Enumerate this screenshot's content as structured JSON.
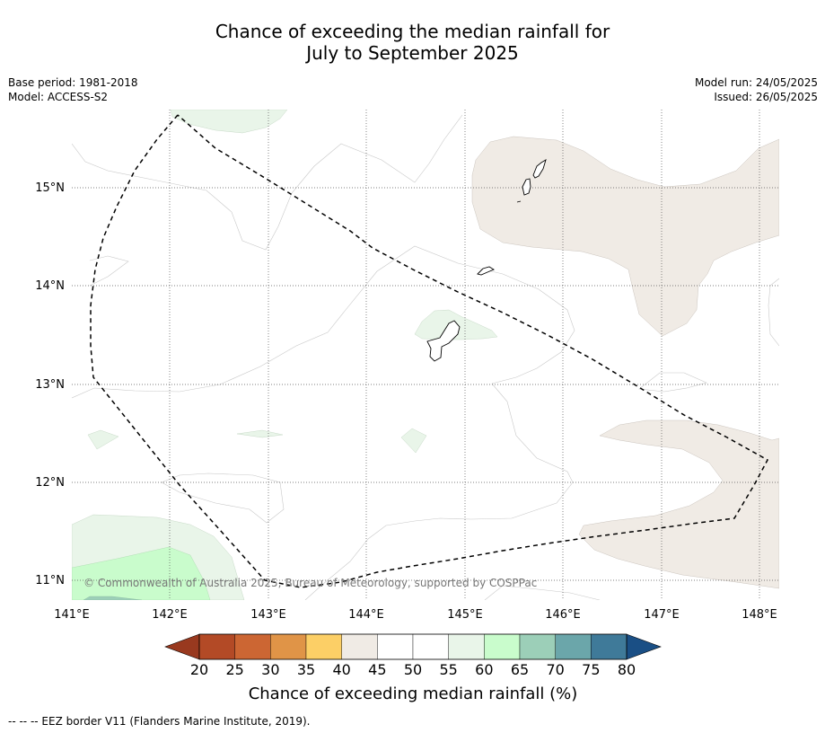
{
  "title": {
    "line1": "Chance of exceeding the median rainfall for",
    "line2": "July to September 2025"
  },
  "meta_left": {
    "base_period": "Base period: 1981-2018",
    "model": "Model: ACCESS-S2"
  },
  "meta_right": {
    "model_run": "Model run: 24/05/2025",
    "issued": "Issued: 26/05/2025"
  },
  "map": {
    "lon_range": [
      141,
      148.2
    ],
    "lat_range": [
      10.8,
      15.8
    ],
    "lat_labels": [
      "15°N",
      "14°N",
      "13°N",
      "12°N",
      "11°N"
    ],
    "lat_values": [
      15,
      14,
      13,
      12,
      11
    ],
    "lon_labels": [
      "141°E",
      "142°E",
      "143°E",
      "144°E",
      "145°E",
      "146°E",
      "147°E",
      "148°E"
    ],
    "lon_values": [
      141,
      142,
      143,
      144,
      145,
      146,
      147,
      148
    ],
    "gridlines": true,
    "copyright": "© Commonwealth of Australia 2025, Bureau of Meteorology, supported by COSPPac"
  },
  "colorbar": {
    "ticks": [
      "20",
      "25",
      "30",
      "35",
      "40",
      "45",
      "50",
      "55",
      "60",
      "65",
      "70",
      "75",
      "80"
    ],
    "colors": [
      "#b34a26",
      "#cc6633",
      "#e09447",
      "#fccf66",
      "#f0ebe5",
      "#ffffff",
      "#ffffff",
      "#e9f5e9",
      "#c9fccc",
      "#9ccfb8",
      "#6ba6aa",
      "#3f7a99"
    ],
    "low_extend_color": "#99391f",
    "high_extend_color": "#1a4f85",
    "title": "Chance of exceeding median rainfall (%)"
  },
  "footer": {
    "legend_text": "--  --  -- EEZ border V11 (Flanders Marine Institute, 2019)."
  },
  "colors": {
    "dry_shade": "#f0ebe5",
    "wet_light": "#e9f5e9",
    "wet_mid": "#c9fccc",
    "wet_high": "#9ccfb8"
  }
}
